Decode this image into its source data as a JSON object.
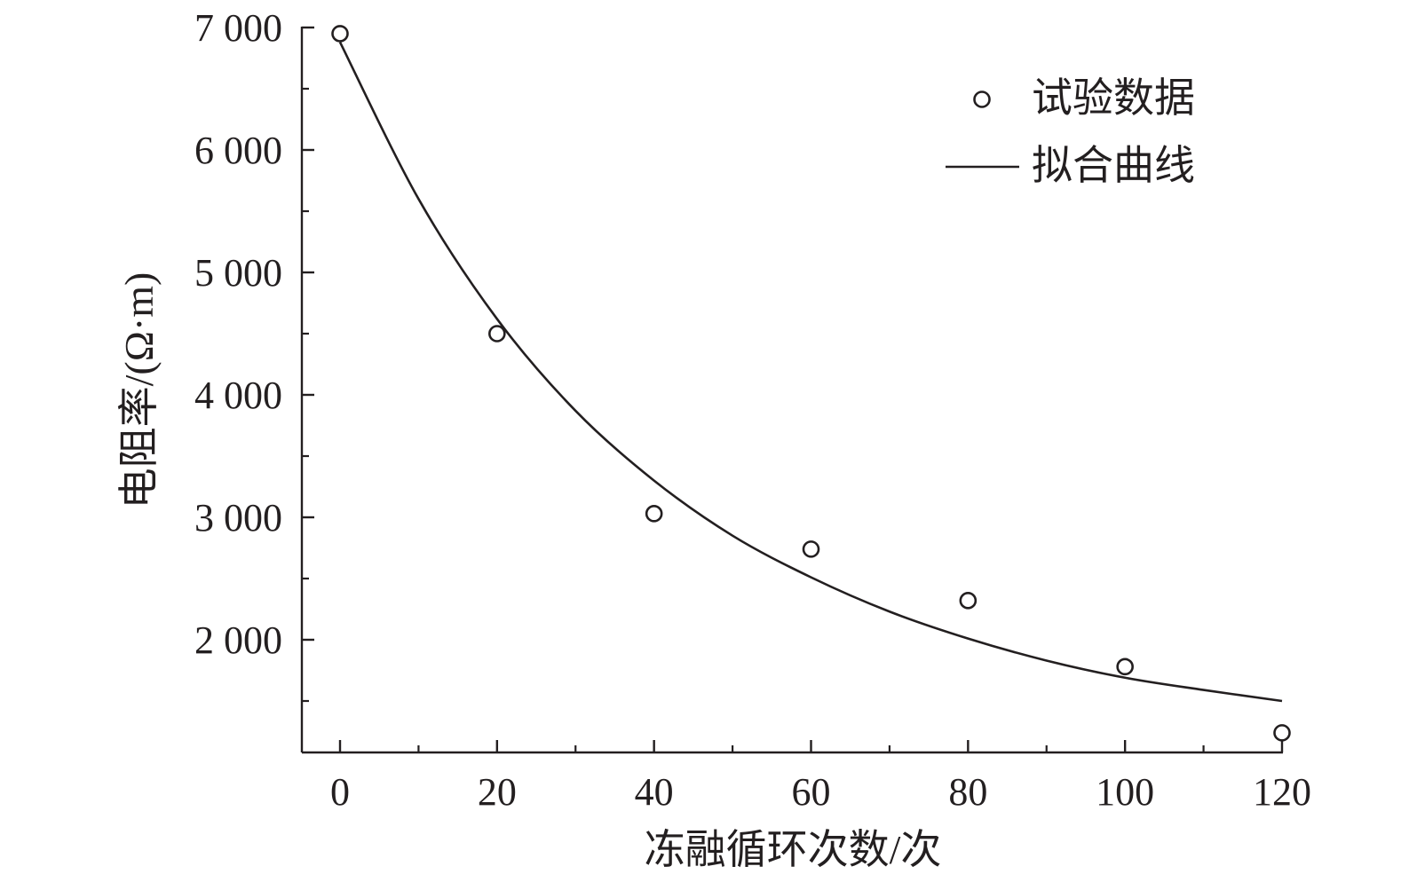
{
  "chart_data": {
    "type": "scatter",
    "title": "",
    "xlabel": "冻融循环次数/次",
    "ylabel": "电阻率/(Ω·m)",
    "xlim": [
      -5,
      122
    ],
    "ylim": [
      1100,
      7000
    ],
    "xticks": [
      0,
      20,
      40,
      60,
      80,
      100,
      120
    ],
    "xtick_labels": [
      "0",
      "20",
      "40",
      "60",
      "80",
      "100",
      "120"
    ],
    "yticks": [
      2000,
      3000,
      4000,
      5000,
      6000,
      7000
    ],
    "ytick_labels": [
      "2 000",
      "3 000",
      "4 000",
      "5 000",
      "6 000",
      "7 000"
    ],
    "grid": false,
    "legend_position": "top-right",
    "series": [
      {
        "name": "试验数据",
        "kind": "scatter",
        "marker": "open-circle",
        "x": [
          0,
          20,
          40,
          60,
          80,
          100,
          120
        ],
        "y": [
          6950,
          4500,
          3030,
          2740,
          2320,
          1780,
          1240
        ]
      },
      {
        "name": "拟合曲线",
        "kind": "line",
        "x": [
          0,
          10,
          20,
          30,
          40,
          50,
          60,
          70,
          80,
          90,
          100,
          110,
          120
        ],
        "y": [
          6880,
          5600,
          4620,
          3870,
          3300,
          2850,
          2510,
          2230,
          2010,
          1830,
          1690,
          1590,
          1500
        ]
      }
    ],
    "color": "#231f20"
  }
}
